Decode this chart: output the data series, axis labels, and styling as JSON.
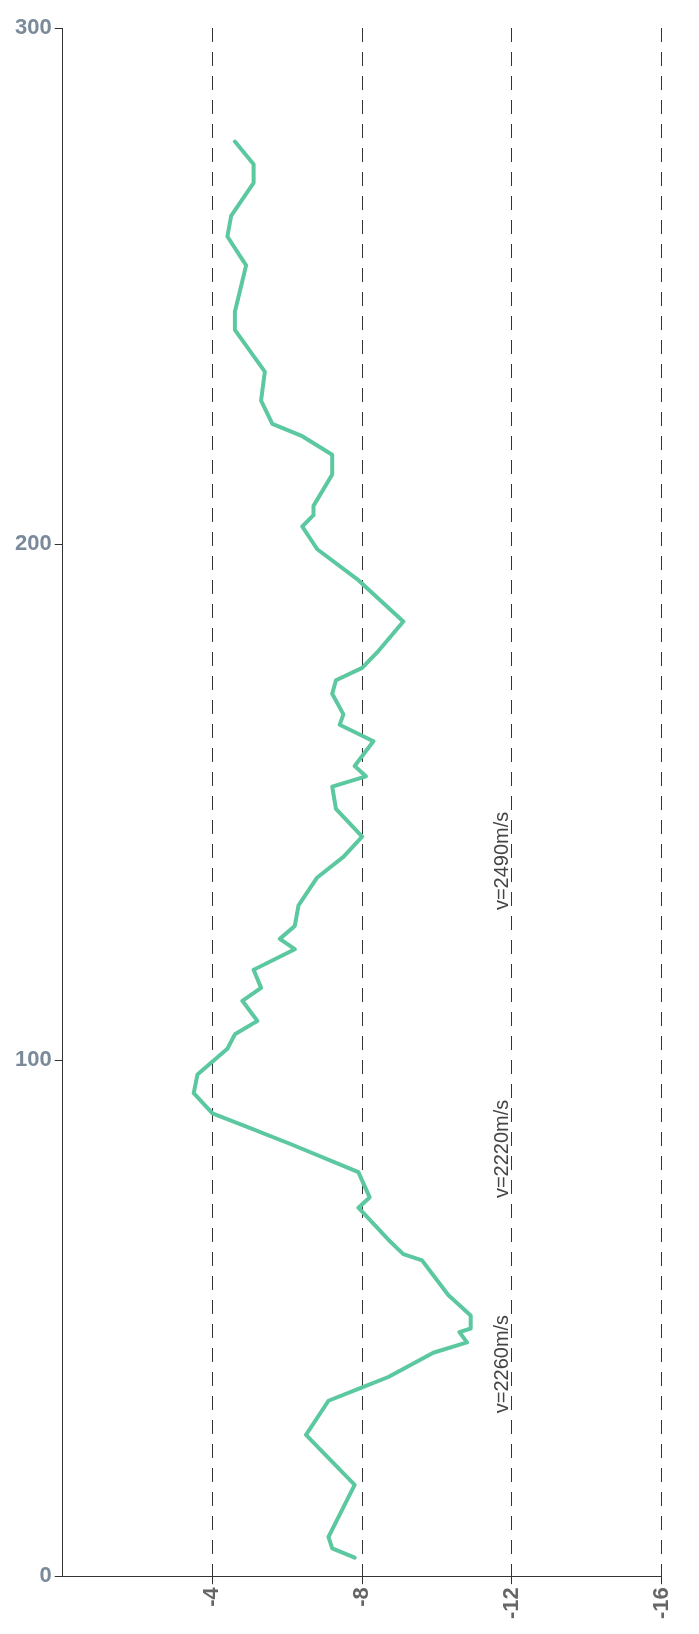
{
  "chart_data": {
    "type": "line",
    "series": [
      {
        "color": "#5cc8a0",
        "x": [
          -7.8,
          -7.2,
          -7.1,
          -7.8,
          -6.5,
          -7.1,
          -8.0,
          -8.7,
          -9.9,
          -10.8,
          -10.6,
          -10.9,
          -10.9,
          -10.3,
          -9.6,
          -9.1,
          -8.7,
          -7.9,
          -8.2,
          -7.9,
          -6.1,
          -4.0,
          -3.5,
          -3.6,
          -4.4,
          -4.6,
          -5.2,
          -4.8,
          -5.3,
          -5.1,
          -6.2,
          -5.8,
          -6.2,
          -6.3,
          -6.8,
          -7.5,
          -8.0,
          -7.3,
          -7.2,
          -8.1,
          -7.8,
          -8.3,
          -7.4,
          -7.5,
          -7.2,
          -7.3,
          -8.0,
          -8.4,
          -9.1,
          -7.9,
          -6.8,
          -6.4,
          -6.7,
          -6.7,
          -7.2,
          -7.2,
          -6.4,
          -5.6,
          -5.3,
          -5.4,
          -4.6,
          -4.6,
          -4.9,
          -4.4,
          -4.5,
          -5.1,
          -5.1,
          -4.6
        ],
        "values": [
          3.6,
          5.4,
          7.6,
          17.7,
          27.4,
          34,
          36.6,
          38.6,
          43.3,
          45.3,
          47.3,
          48,
          50.5,
          54.5,
          61.2,
          62.4,
          65.2,
          71.4,
          73.4,
          78.3,
          83.7,
          89.7,
          93.6,
          97.2,
          102.2,
          105,
          107.6,
          111.5,
          114,
          117.5,
          121.5,
          123.5,
          126,
          130,
          135.4,
          139.4,
          143.3,
          148.7,
          153,
          155,
          157,
          161.8,
          165,
          167,
          171,
          173.6,
          176,
          179,
          185,
          193,
          199,
          203.4,
          205.6,
          207.4,
          213.5,
          217.3,
          220.9,
          223.3,
          227.8,
          233.4,
          241.5,
          245,
          254,
          259.6,
          263.6,
          270,
          273.6,
          278
        ]
      }
    ],
    "xlim": [
      0,
      -16
    ],
    "xticks": [
      -4,
      -8,
      -12,
      -16
    ],
    "ylim": [
      0,
      300
    ],
    "yticks": [
      0,
      100,
      200,
      300
    ],
    "grid": "x",
    "legend": false,
    "marker": "none",
    "line_style": "solid",
    "annotations": [
      "v=2260m/s",
      "v=2220m/s",
      "v=2490m/s"
    ]
  }
}
